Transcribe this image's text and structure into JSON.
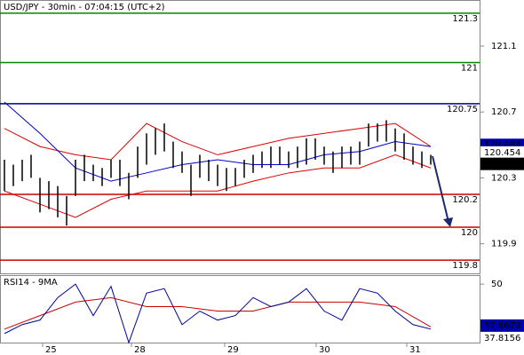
{
  "chart_data": {
    "type": "ohlc",
    "title": "USD/JPY - 30min - 07:04:15 (UTC+2)",
    "xlim": [
      -0.5,
      53.5
    ],
    "xticks": [
      {
        "value": 4.3,
        "label": "25"
      },
      {
        "value": 14.3,
        "label": "28"
      },
      {
        "value": 24.8,
        "label": "29"
      },
      {
        "value": 35.1,
        "label": "30"
      },
      {
        "value": 45.3,
        "label": "31"
      }
    ],
    "ylim": [
      119.72,
      121.38
    ],
    "yticks": [
      121.1,
      120.7,
      120.3,
      119.9
    ],
    "bars": {
      "color": "#000000",
      "high": [
        120.41,
        120.38,
        120.41,
        120.44,
        120.3,
        120.28,
        120.25,
        120.19,
        120.41,
        120.44,
        120.38,
        120.36,
        120.41,
        120.41,
        120.33,
        120.49,
        120.57,
        120.6,
        120.63,
        120.52,
        120.46,
        120.38,
        120.44,
        120.41,
        120.38,
        120.36,
        120.36,
        120.41,
        120.44,
        120.46,
        120.49,
        120.49,
        120.46,
        120.49,
        120.54,
        120.54,
        120.49,
        120.46,
        120.49,
        120.49,
        120.52,
        120.63,
        120.63,
        120.65,
        120.6,
        120.57,
        120.49,
        120.46,
        120.44
      ],
      "low": [
        120.22,
        120.25,
        120.28,
        120.3,
        120.09,
        120.11,
        120.06,
        120.01,
        120.19,
        120.28,
        120.28,
        120.25,
        120.3,
        120.25,
        120.17,
        120.3,
        120.38,
        120.44,
        120.46,
        120.36,
        120.33,
        120.19,
        120.3,
        120.28,
        120.25,
        120.22,
        120.25,
        120.3,
        120.33,
        120.36,
        120.36,
        120.38,
        120.36,
        120.36,
        120.38,
        120.41,
        120.38,
        120.33,
        120.36,
        120.38,
        120.38,
        120.49,
        120.52,
        120.52,
        120.46,
        120.41,
        120.38,
        120.36,
        120.38
      ]
    },
    "lines": [
      {
        "color": "#dd0000",
        "x": [
          0,
          4,
          8,
          12,
          16,
          20,
          24,
          28,
          32,
          36,
          40,
          44,
          48
        ],
        "values": [
          120.6,
          120.49,
          120.44,
          120.41,
          120.63,
          120.52,
          120.44,
          120.49,
          120.54,
          120.57,
          120.6,
          120.63,
          120.49
        ]
      },
      {
        "color": "#dd0000",
        "x": [
          0,
          4,
          8,
          12,
          16,
          20,
          24,
          28,
          32,
          36,
          40,
          44,
          48
        ],
        "values": [
          120.22,
          120.14,
          120.06,
          120.17,
          120.22,
          120.22,
          120.22,
          120.28,
          120.33,
          120.36,
          120.36,
          120.44,
          120.36
        ]
      },
      {
        "color": "#0000cc",
        "x": [
          0,
          4,
          8,
          12,
          16,
          20,
          24,
          28,
          32,
          36,
          40,
          44,
          48
        ],
        "values": [
          120.76,
          120.57,
          120.36,
          120.28,
          120.33,
          120.38,
          120.41,
          120.38,
          120.38,
          120.44,
          120.46,
          120.52,
          120.49
        ]
      }
    ],
    "levels": [
      {
        "value": 121.3,
        "color": "#008800"
      },
      {
        "value": 121,
        "color": "#008800"
      },
      {
        "value": 120.75,
        "color": "#000099"
      },
      {
        "value": 120.2,
        "color": "#cc0000"
      },
      {
        "value": 120,
        "color": "#cc0000"
      },
      {
        "value": 119.8,
        "color": "#cc0000"
      }
    ],
    "price_tags": [
      {
        "value": 120.484,
        "bg": "#0000aa",
        "fg": "#ffffff"
      },
      {
        "value": 120.454,
        "bg": "#ffffff",
        "fg": "#cc0000"
      },
      {
        "value": 120.401,
        "bg": "#000000",
        "fg": "#ffffff"
      }
    ],
    "rsi": {
      "title": "RSI14 - 9MA",
      "ylim": [
        24,
        54
      ],
      "yticks": [
        50
      ],
      "color": "#000099",
      "x": [
        0,
        2,
        4,
        6,
        8,
        10,
        12,
        14,
        16,
        18,
        20,
        22,
        24,
        26,
        28,
        30,
        32,
        34,
        36,
        38,
        40,
        42,
        44,
        46,
        48
      ],
      "values": [
        28,
        32,
        34,
        44,
        50,
        36,
        49,
        24,
        46,
        48,
        32,
        38,
        34,
        36,
        44,
        40,
        42,
        48,
        38,
        34,
        48,
        46,
        38,
        32,
        30
      ],
      "ma": {
        "color": "#cc0000",
        "x": [
          0,
          4,
          8,
          12,
          16,
          20,
          24,
          28,
          32,
          36,
          40,
          44,
          48
        ],
        "values": [
          30,
          36,
          42,
          44,
          40,
          40,
          38,
          38,
          42,
          42,
          42,
          40,
          31
        ]
      },
      "tags": [
        {
          "value": 37.8679,
          "bg": "#0000aa",
          "fg": "#ffffff"
        },
        {
          "value": 37.8156,
          "bg": "#ffffff",
          "fg": "#cc0000"
        }
      ]
    }
  }
}
